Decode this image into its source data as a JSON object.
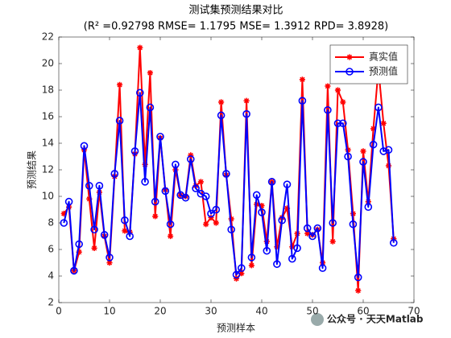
{
  "chart_data": {
    "type": "line",
    "title": "测试集预测结果对比",
    "subtitle": "(R² =0.92798 RMSE= 1.1795 MSE= 1.3912 RPD= 3.8928)",
    "x_label": "预测样本",
    "y_label": "预测结果",
    "watermark": "公众号 · 天天Matlab",
    "xlim": [
      0,
      70
    ],
    "xticks": [
      0,
      10,
      20,
      30,
      40,
      50,
      60,
      70
    ],
    "ylim": [
      2,
      22
    ],
    "yticks": [
      2,
      4,
      6,
      8,
      10,
      12,
      14,
      16,
      18,
      20,
      22
    ],
    "grid": false,
    "legend": "upper right",
    "x": [
      1,
      2,
      3,
      4,
      5,
      6,
      7,
      8,
      9,
      10,
      11,
      12,
      13,
      14,
      15,
      16,
      17,
      18,
      19,
      20,
      21,
      22,
      23,
      24,
      25,
      26,
      27,
      28,
      29,
      30,
      31,
      32,
      33,
      34,
      35,
      36,
      37,
      38,
      39,
      40,
      41,
      42,
      43,
      44,
      45,
      46,
      47,
      48,
      49,
      50,
      51,
      52,
      53,
      54,
      55,
      56,
      57,
      58,
      59,
      60,
      61,
      62,
      63,
      64,
      65,
      66
    ],
    "series": [
      {
        "name": "真实值",
        "color": "#ff0000",
        "marker": "star",
        "values": [
          8.7,
          9.2,
          4.4,
          5.8,
          13.5,
          9.8,
          6.1,
          10.3,
          7.0,
          5.0,
          11.5,
          18.4,
          7.4,
          7.3,
          13.2,
          21.2,
          12.4,
          19.3,
          8.5,
          14.4,
          10.5,
          7.0,
          12.0,
          10.1,
          10.0,
          13.1,
          10.8,
          11.1,
          7.9,
          8.4,
          8.0,
          17.1,
          11.6,
          8.3,
          3.8,
          4.2,
          17.2,
          4.8,
          9.4,
          9.3,
          6.6,
          11.1,
          6.2,
          8.4,
          9.1,
          6.2,
          7.2,
          18.8,
          7.2,
          7.1,
          7.5,
          5.0,
          18.3,
          6.6,
          18.0,
          17.1,
          13.5,
          8.7,
          2.9,
          13.4,
          9.6,
          15.1,
          19.6,
          15.5,
          12.3,
          6.8
        ]
      },
      {
        "name": "预测值",
        "color": "#0000ff",
        "marker": "circle",
        "values": [
          8.0,
          9.6,
          4.4,
          6.4,
          13.8,
          10.8,
          7.5,
          10.8,
          7.1,
          5.4,
          11.7,
          15.7,
          8.2,
          7.0,
          13.4,
          17.8,
          11.1,
          16.7,
          9.6,
          14.5,
          10.4,
          7.9,
          12.4,
          10.1,
          9.9,
          12.8,
          10.6,
          10.2,
          10.0,
          8.7,
          9.0,
          16.1,
          11.7,
          7.5,
          4.1,
          4.6,
          16.2,
          5.4,
          10.1,
          8.8,
          5.9,
          11.1,
          4.9,
          8.2,
          10.9,
          5.3,
          6.1,
          17.2,
          7.6,
          7.0,
          7.6,
          4.6,
          16.5,
          8.0,
          15.5,
          15.5,
          13.0,
          7.9,
          3.9,
          12.6,
          9.2,
          13.9,
          16.7,
          13.4,
          13.5,
          6.5
        ]
      }
    ]
  }
}
